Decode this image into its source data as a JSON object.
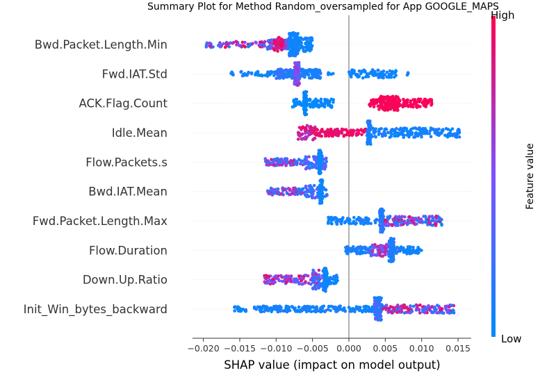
{
  "chart_data": {
    "type": "scatter",
    "title": "Summary Plot for Method Random_oversampled for App GOOGLE_MAPS",
    "xlabel": "SHAP value (impact on model output)",
    "ylabel": "",
    "xlim": [
      -0.0215,
      0.0168
    ],
    "x_ticks": [
      {
        "value": -0.02,
        "label": "−0.020"
      },
      {
        "value": -0.015,
        "label": "−0.015"
      },
      {
        "value": -0.01,
        "label": "−0.010"
      },
      {
        "value": -0.005,
        "label": "−0.005"
      },
      {
        "value": 0.0,
        "label": "0.000"
      },
      {
        "value": 0.005,
        "label": "0.005"
      },
      {
        "value": 0.01,
        "label": "0.010"
      },
      {
        "value": 0.015,
        "label": "0.015"
      }
    ],
    "zero_line": 0.0,
    "grid": false,
    "colorbar": {
      "label": "Feature value",
      "high_label": "High",
      "low_label": "Low",
      "low_color": "#008bfb",
      "mid_color": "#7c52ff",
      "high_color": "#ff0052"
    },
    "features": [
      {
        "name": "Bwd.Packet.Length.Min",
        "clusters": [
          {
            "x": [
              -0.0196,
              -0.0112
            ],
            "n": 70,
            "spread": 0.25,
            "v": [
              0.0,
              1.0
            ]
          },
          {
            "x": [
              -0.0112,
              -0.0082
            ],
            "n": 90,
            "spread": 0.4,
            "v": [
              0.0,
              0.8
            ]
          },
          {
            "x": [
              -0.0082,
              -0.007
            ],
            "n": 140,
            "spread": 1.0,
            "v": [
              0.0,
              0.15
            ]
          },
          {
            "x": [
              -0.007,
              -0.005
            ],
            "n": 70,
            "spread": 0.6,
            "v": [
              0.0,
              0.1
            ]
          },
          {
            "x": [
              -0.0104,
              -0.009
            ],
            "n": 30,
            "spread": 0.6,
            "v": [
              0.85,
              1.0
            ]
          }
        ]
      },
      {
        "name": "Fwd.IAT.Std",
        "clusters": [
          {
            "x": [
              -0.0162,
              -0.01
            ],
            "n": 50,
            "spread": 0.2,
            "v": [
              0.0,
              0.15
            ]
          },
          {
            "x": [
              -0.01,
              -0.0075
            ],
            "n": 90,
            "spread": 0.4,
            "v": [
              0.0,
              0.3
            ]
          },
          {
            "x": [
              -0.0075,
              -0.0068
            ],
            "n": 100,
            "spread": 1.0,
            "v": [
              0.3,
              0.75
            ]
          },
          {
            "x": [
              -0.0068,
              -0.0038
            ],
            "n": 70,
            "spread": 0.4,
            "v": [
              0.0,
              0.2
            ]
          },
          {
            "x": [
              -0.003,
              -0.002
            ],
            "n": 5,
            "spread": 0.1,
            "v": [
              0.0,
              0.1
            ]
          },
          {
            "x": [
              0.0,
              0.0065
            ],
            "n": 90,
            "spread": 0.35,
            "v": [
              0.0,
              0.1
            ]
          },
          {
            "x": [
              0.008,
              0.0082
            ],
            "n": 3,
            "spread": 0.1,
            "v": [
              0.0,
              0.1
            ]
          }
        ]
      },
      {
        "name": "ACK.Flag.Count",
        "clusters": [
          {
            "x": [
              -0.0078,
              -0.002
            ],
            "n": 110,
            "spread": 0.35,
            "v": [
              0.0,
              0.05
            ]
          },
          {
            "x": [
              -0.0062,
              -0.0058
            ],
            "n": 60,
            "spread": 1.0,
            "v": [
              0.0,
              0.05
            ]
          },
          {
            "x": [
              0.0028,
              0.0115
            ],
            "n": 150,
            "spread": 0.35,
            "v": [
              0.95,
              1.0
            ]
          },
          {
            "x": [
              0.004,
              0.007
            ],
            "n": 80,
            "spread": 0.6,
            "v": [
              0.95,
              1.0
            ]
          }
        ]
      },
      {
        "name": "Idle.Mean",
        "clusters": [
          {
            "x": [
              -0.007,
              -0.0045
            ],
            "n": 60,
            "spread": 0.6,
            "v": [
              0.6,
              1.0
            ]
          },
          {
            "x": [
              -0.0045,
              0.0025
            ],
            "n": 110,
            "spread": 0.3,
            "v": [
              0.85,
              1.0
            ]
          },
          {
            "x": [
              0.0025,
              0.003
            ],
            "n": 60,
            "spread": 1.0,
            "v": [
              0.0,
              0.2
            ]
          },
          {
            "x": [
              0.003,
              0.0152
            ],
            "n": 180,
            "spread": 0.4,
            "v": [
              0.0,
              0.15
            ]
          }
        ]
      },
      {
        "name": "Flow.Packets.s",
        "clusters": [
          {
            "x": [
              -0.0115,
              -0.006
            ],
            "n": 90,
            "spread": 0.3,
            "v": [
              0.0,
              0.9
            ]
          },
          {
            "x": [
              -0.006,
              -0.003
            ],
            "n": 70,
            "spread": 0.6,
            "v": [
              0.0,
              0.6
            ]
          },
          {
            "x": [
              -0.0042,
              -0.0038
            ],
            "n": 70,
            "spread": 1.0,
            "v": [
              0.0,
              0.1
            ]
          }
        ]
      },
      {
        "name": "Bwd.IAT.Mean",
        "clusters": [
          {
            "x": [
              -0.0112,
              -0.006
            ],
            "n": 80,
            "spread": 0.3,
            "v": [
              0.0,
              0.9
            ]
          },
          {
            "x": [
              -0.006,
              -0.003
            ],
            "n": 60,
            "spread": 0.6,
            "v": [
              0.0,
              0.5
            ]
          },
          {
            "x": [
              -0.004,
              -0.0036
            ],
            "n": 70,
            "spread": 1.0,
            "v": [
              0.0,
              0.1
            ]
          }
        ]
      },
      {
        "name": "Fwd.Packet.Length.Max",
        "clusters": [
          {
            "x": [
              -0.003,
              0.004
            ],
            "n": 80,
            "spread": 0.3,
            "v": [
              0.0,
              0.15
            ]
          },
          {
            "x": [
              0.0042,
              0.0048
            ],
            "n": 70,
            "spread": 1.0,
            "v": [
              0.0,
              0.3
            ]
          },
          {
            "x": [
              0.0048,
              0.0128
            ],
            "n": 150,
            "spread": 0.4,
            "v": [
              0.0,
              1.0
            ]
          }
        ]
      },
      {
        "name": "Flow.Duration",
        "clusters": [
          {
            "x": [
              -0.0005,
              0.003
            ],
            "n": 60,
            "spread": 0.3,
            "v": [
              0.0,
              0.2
            ]
          },
          {
            "x": [
              0.003,
              0.0055
            ],
            "n": 70,
            "spread": 0.5,
            "v": [
              0.2,
              1.0
            ]
          },
          {
            "x": [
              0.0055,
              0.0062
            ],
            "n": 80,
            "spread": 1.0,
            "v": [
              0.0,
              0.2
            ]
          },
          {
            "x": [
              0.0062,
              0.01
            ],
            "n": 60,
            "spread": 0.3,
            "v": [
              0.0,
              0.15
            ]
          }
        ]
      },
      {
        "name": "Down.Up.Ratio",
        "clusters": [
          {
            "x": [
              -0.0118,
              -0.005
            ],
            "n": 100,
            "spread": 0.4,
            "v": [
              0.3,
              1.0
            ]
          },
          {
            "x": [
              -0.005,
              -0.003
            ],
            "n": 70,
            "spread": 0.8,
            "v": [
              0.0,
              0.8
            ]
          },
          {
            "x": [
              -0.0035,
              -0.003
            ],
            "n": 60,
            "spread": 1.0,
            "v": [
              0.0,
              0.1
            ]
          },
          {
            "x": [
              -0.003,
              -0.0015
            ],
            "n": 30,
            "spread": 0.4,
            "v": [
              0.0,
              0.1
            ]
          }
        ]
      },
      {
        "name": "Init_Win_bytes_backward",
        "clusters": [
          {
            "x": [
              -0.0162,
              -0.014
            ],
            "n": 20,
            "spread": 0.2,
            "v": [
              0.0,
              0.1
            ]
          },
          {
            "x": [
              -0.013,
              0.0035
            ],
            "n": 200,
            "spread": 0.25,
            "v": [
              0.0,
              0.15
            ]
          },
          {
            "x": [
              0.0035,
              0.0045
            ],
            "n": 80,
            "spread": 1.0,
            "v": [
              0.0,
              0.4
            ]
          },
          {
            "x": [
              0.0045,
              0.0145
            ],
            "n": 140,
            "spread": 0.35,
            "v": [
              0.0,
              1.0
            ]
          }
        ]
      }
    ]
  }
}
